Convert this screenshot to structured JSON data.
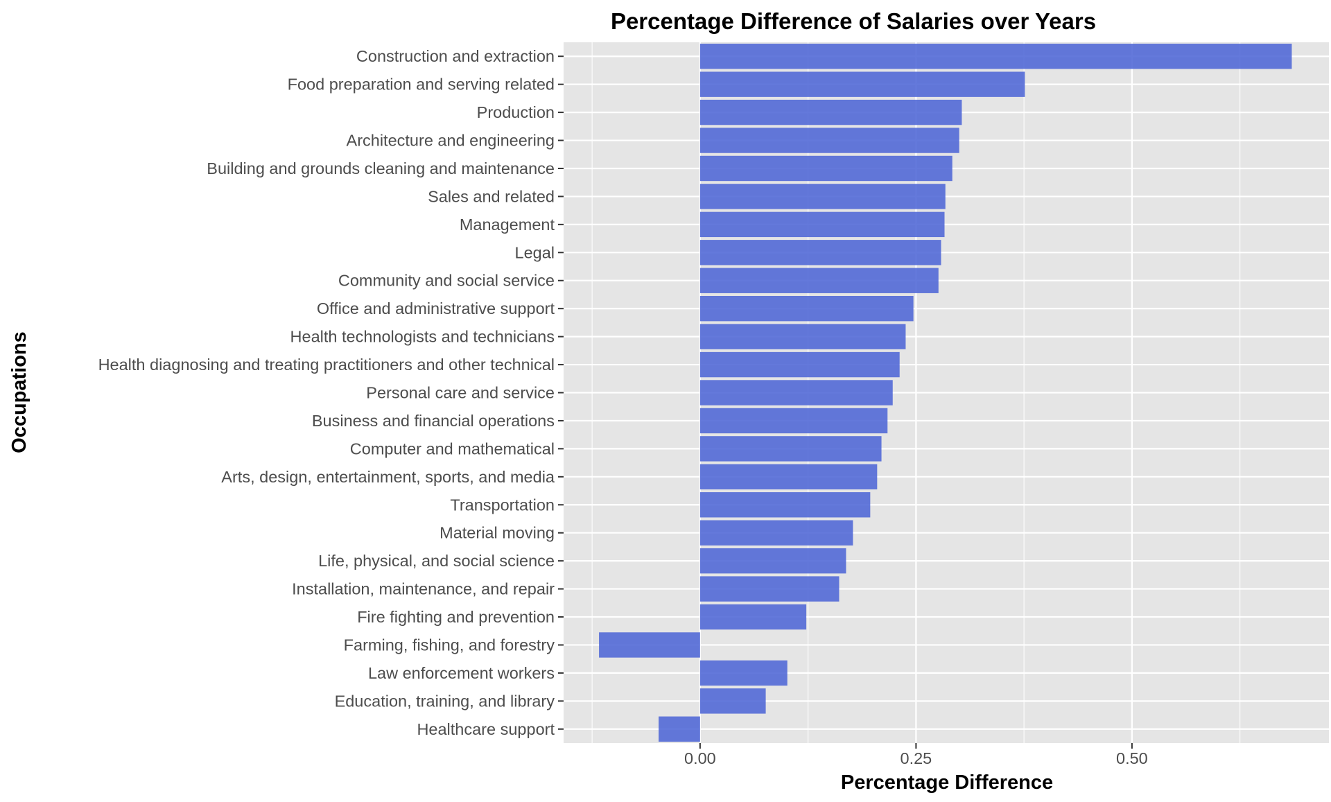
{
  "chart_data": {
    "type": "bar",
    "orientation": "horizontal",
    "title": "Percentage Difference of Salaries over Years",
    "xlabel": "Percentage Difference",
    "ylabel": "Occupations",
    "xlim": [
      -0.158,
      0.728
    ],
    "x_ticks": [
      0.0,
      0.25,
      0.5
    ],
    "x_tick_labels": [
      "0.00",
      "0.25",
      "0.50"
    ],
    "grid": true,
    "legend": "none",
    "bar_color": "#4f66d6",
    "panel_background": "#e5e5e5",
    "categories": [
      "Construction and extraction",
      "Food preparation and serving related",
      "Production",
      "Architecture and engineering",
      "Building and grounds cleaning and maintenance",
      "Sales and related",
      "Management",
      "Legal",
      "Community and social service",
      "Office and administrative support",
      "Health technologists and technicians",
      "Health diagnosing and treating practitioners and other technical",
      "Personal care and service",
      "Business and financial operations",
      "Computer and mathematical",
      "Arts, design, entertainment, sports, and media",
      "Transportation",
      "Material moving",
      "Life, physical, and social science",
      "Installation, maintenance, and repair",
      "Fire fighting and prevention",
      "Farming, fishing, and forestry",
      "Law enforcement workers",
      "Education, training, and library",
      "Healthcare support"
    ],
    "values": [
      0.685,
      0.376,
      0.303,
      0.3,
      0.292,
      0.284,
      0.283,
      0.279,
      0.276,
      0.247,
      0.238,
      0.231,
      0.223,
      0.217,
      0.21,
      0.205,
      0.197,
      0.177,
      0.169,
      0.161,
      0.123,
      -0.117,
      0.101,
      0.076,
      -0.048
    ]
  }
}
